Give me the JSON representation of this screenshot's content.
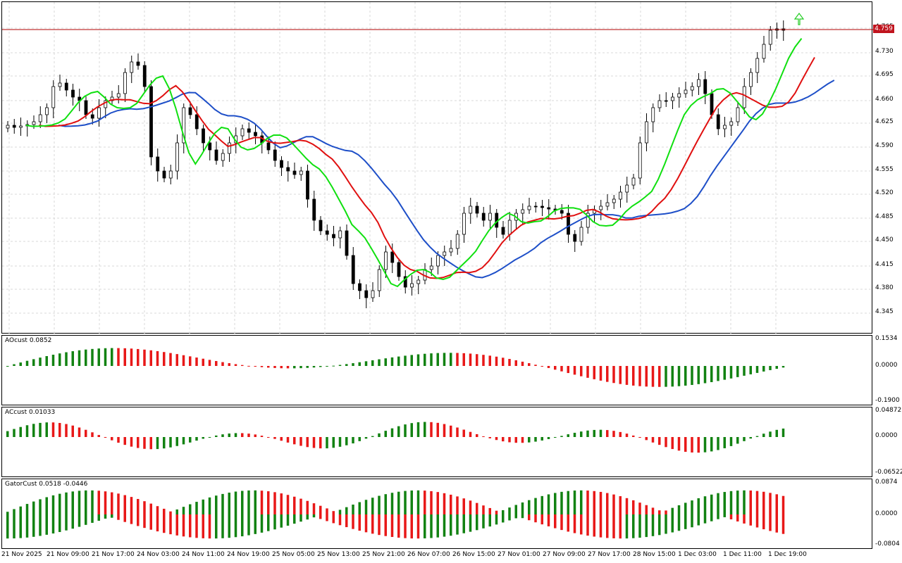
{
  "main": {
    "price_axis": [
      "4.765",
      "4.730",
      "4.695",
      "4.660",
      "4.625",
      "4.590",
      "4.555",
      "4.520",
      "4.485",
      "4.450",
      "4.415",
      "4.380",
      "4.345"
    ],
    "current_price": "4.759",
    "colors": {
      "bull_candle": "#ffffff",
      "bear_candle": "#000000",
      "jaw": "#1e4fc8",
      "teeth": "#e01010",
      "lips": "#10e010",
      "price_line": "#b00000",
      "fractal": "#a0a0a0"
    }
  },
  "ao": {
    "label": "AOcust 0.0852",
    "ticks": [
      "0.1534",
      "0.0000",
      "-0.1900"
    ]
  },
  "ac": {
    "label": "ACcust 0.01033",
    "ticks": [
      "0.04872",
      "0.0000",
      "-0.06522"
    ]
  },
  "gator": {
    "label": "GatorCust 0.0518 -0.0446",
    "ticks": [
      "0.0874",
      "0.0000",
      "-0.0804"
    ]
  },
  "time_axis": [
    "21 Nov 2025",
    "21 Nov 09:00",
    "21 Nov 17:00",
    "24 Nov 03:00",
    "24 Nov 11:00",
    "24 Nov 19:00",
    "25 Nov 05:00",
    "25 Nov 13:00",
    "25 Nov 21:00",
    "26 Nov 07:00",
    "26 Nov 15:00",
    "27 Nov 01:00",
    "27 Nov 09:00",
    "27 Nov 17:00",
    "28 Nov 15:00",
    "1 Dec 03:00",
    "1 Dec 11:00",
    "1 Dec 19:00"
  ],
  "colors": {
    "up_bar": "#128212",
    "down_bar": "#e81818"
  }
}
